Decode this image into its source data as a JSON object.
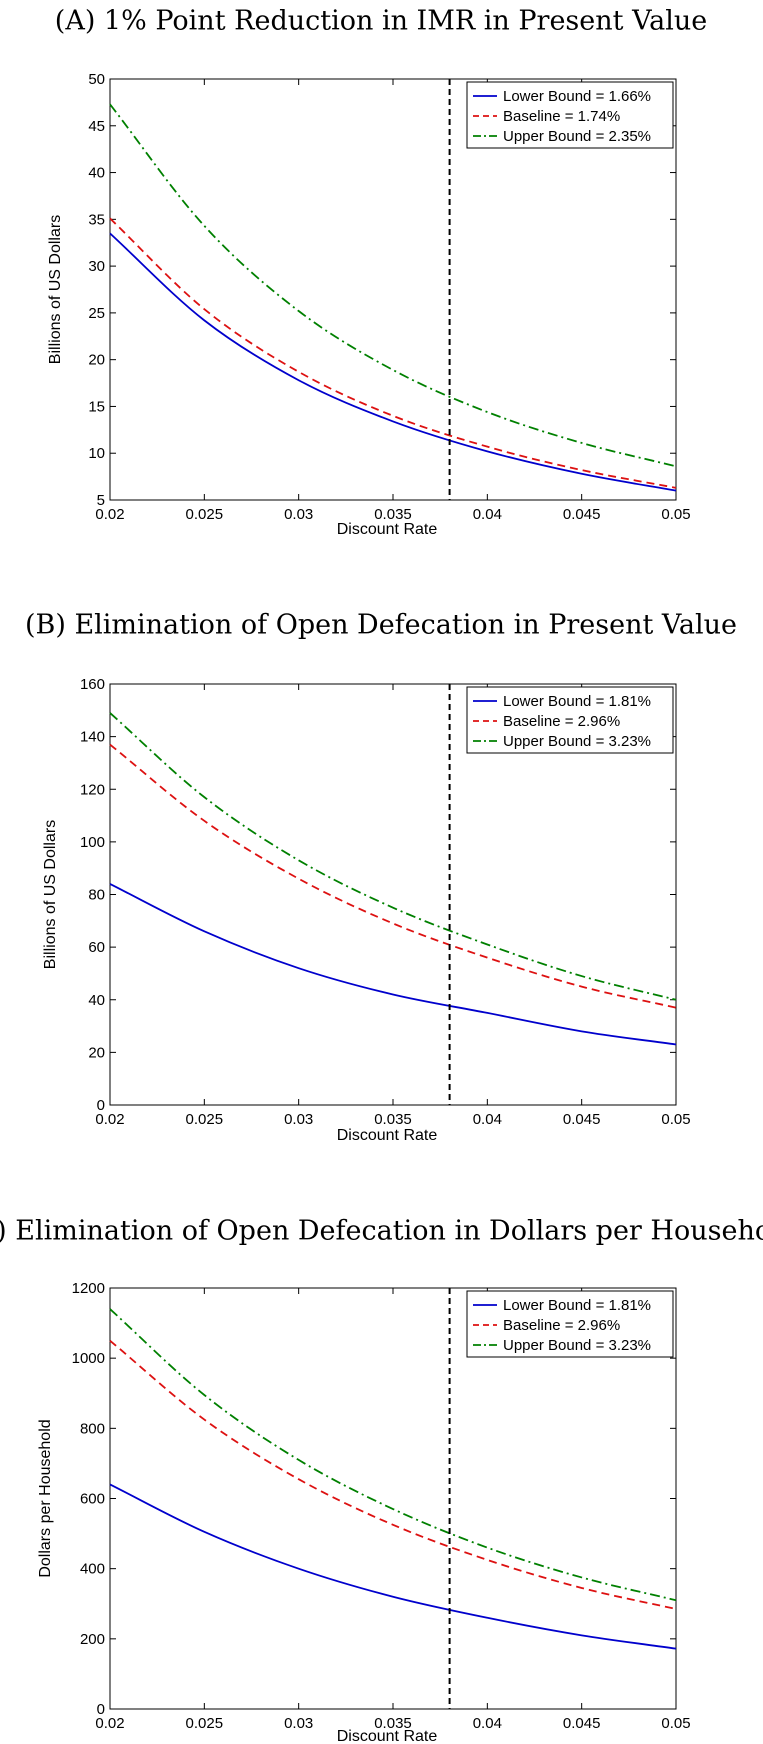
{
  "colors": {
    "lower": "#0000cc",
    "baseline": "#dd1111",
    "upper": "#008000",
    "reference": "#000000"
  },
  "chart_data": [
    {
      "type": "line",
      "title": "(A) 1% Point Reduction in IMR in Present Value",
      "xlabel": "Discount Rate",
      "ylabel": "Billions of US Dollars",
      "xlim": [
        0.02,
        0.05
      ],
      "ylim": [
        5,
        50
      ],
      "xticks": [
        "0.02",
        "0.025",
        "0.03",
        "0.035",
        "0.04",
        "0.045",
        "0.05"
      ],
      "yticks": [
        "5",
        "10",
        "15",
        "20",
        "25",
        "30",
        "35",
        "40",
        "45",
        "50"
      ],
      "reference_line_x": 0.038,
      "legend_position": "top-right",
      "x": [
        0.02,
        0.025,
        0.03,
        0.035,
        0.04,
        0.045,
        0.05
      ],
      "series": [
        {
          "name": "Lower Bound = 1.66%",
          "style": "solid",
          "values": [
            33.5,
            24.2,
            17.8,
            13.4,
            10.2,
            7.8,
            6.0
          ]
        },
        {
          "name": "Baseline = 1.74%",
          "style": "dashed",
          "values": [
            35.1,
            25.4,
            18.7,
            14.0,
            10.7,
            8.2,
            6.3
          ]
        },
        {
          "name": "Upper Bound = 2.35%",
          "style": "dashdot",
          "values": [
            47.3,
            34.3,
            25.2,
            18.9,
            14.4,
            11.1,
            8.6
          ]
        }
      ]
    },
    {
      "type": "line",
      "title": "(B) Elimination of Open Defecation in Present Value",
      "xlabel": "Discount Rate",
      "ylabel": "Billions of US Dollars",
      "xlim": [
        0.02,
        0.05
      ],
      "ylim": [
        0,
        160
      ],
      "xticks": [
        "0.02",
        "0.025",
        "0.03",
        "0.035",
        "0.04",
        "0.045",
        "0.05"
      ],
      "yticks": [
        "0",
        "20",
        "40",
        "60",
        "80",
        "100",
        "120",
        "140",
        "160"
      ],
      "reference_line_x": 0.038,
      "legend_position": "top-right",
      "x": [
        0.02,
        0.025,
        0.03,
        0.035,
        0.04,
        0.045,
        0.05
      ],
      "series": [
        {
          "name": "Lower Bound = 1.81%",
          "style": "solid",
          "values": [
            84,
            66,
            52,
            42,
            35,
            28,
            23
          ]
        },
        {
          "name": "Baseline = 2.96%",
          "style": "dashed",
          "values": [
            137,
            108,
            86,
            69,
            56,
            45,
            37
          ]
        },
        {
          "name": "Upper Bound = 3.23%",
          "style": "dashdot",
          "values": [
            149,
            117,
            93,
            75,
            61,
            49,
            40
          ]
        }
      ]
    },
    {
      "type": "line",
      "title": "(C) Elimination of Open Defecation in Dollars per Household",
      "xlabel": "Discount Rate",
      "ylabel": "Dollars per Household",
      "xlim": [
        0.02,
        0.05
      ],
      "ylim": [
        0,
        1200
      ],
      "xticks": [
        "0.02",
        "0.025",
        "0.03",
        "0.035",
        "0.04",
        "0.045",
        "0.05"
      ],
      "yticks": [
        "0",
        "200",
        "400",
        "600",
        "800",
        "1000",
        "1200"
      ],
      "reference_line_x": 0.038,
      "legend_position": "top-right",
      "x": [
        0.02,
        0.025,
        0.03,
        0.035,
        0.04,
        0.045,
        0.05
      ],
      "series": [
        {
          "name": "Lower Bound = 1.81%",
          "style": "solid",
          "values": [
            640,
            505,
            400,
            320,
            260,
            210,
            172
          ]
        },
        {
          "name": "Baseline = 2.96%",
          "style": "dashed",
          "values": [
            1050,
            825,
            655,
            525,
            425,
            345,
            285
          ]
        },
        {
          "name": "Upper Bound = 3.23%",
          "style": "dashdot",
          "values": [
            1140,
            895,
            710,
            570,
            460,
            375,
            310
          ]
        }
      ]
    }
  ]
}
